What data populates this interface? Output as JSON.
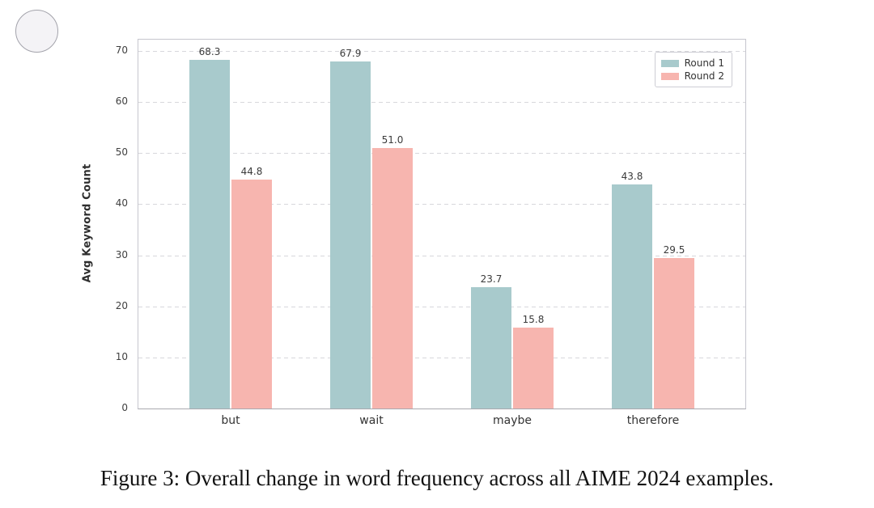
{
  "figure": {
    "caption": "Figure 3: Overall change in word frequency across all AIME 2024 examples."
  },
  "chart_data": {
    "type": "bar",
    "categories": [
      "but",
      "wait",
      "maybe",
      "therefore"
    ],
    "series": [
      {
        "name": "Round 1",
        "color": "#a8cacc",
        "values": [
          68.3,
          67.9,
          23.7,
          43.8
        ]
      },
      {
        "name": "Round 2",
        "color": "#f7b5af",
        "values": [
          44.8,
          51.0,
          15.8,
          29.5
        ]
      }
    ],
    "bar_labels": [
      [
        "68.3",
        "67.9",
        "23.7",
        "43.8"
      ],
      [
        "44.8",
        "51.0",
        "15.8",
        "29.5"
      ]
    ],
    "title": "",
    "xlabel": "",
    "ylabel": "Avg Keyword Count",
    "ylim": [
      0,
      70
    ],
    "yticks": [
      0,
      10,
      20,
      30,
      40,
      50,
      60,
      70
    ],
    "grid": "horizontal-dashed",
    "legend_position": "upper-right"
  },
  "colors": {
    "round1": "#a8cacc",
    "round2": "#f7b5af",
    "grid": "#d7d7dc",
    "spine": "#c6c6ce",
    "label_text": "#3a3a3a"
  }
}
